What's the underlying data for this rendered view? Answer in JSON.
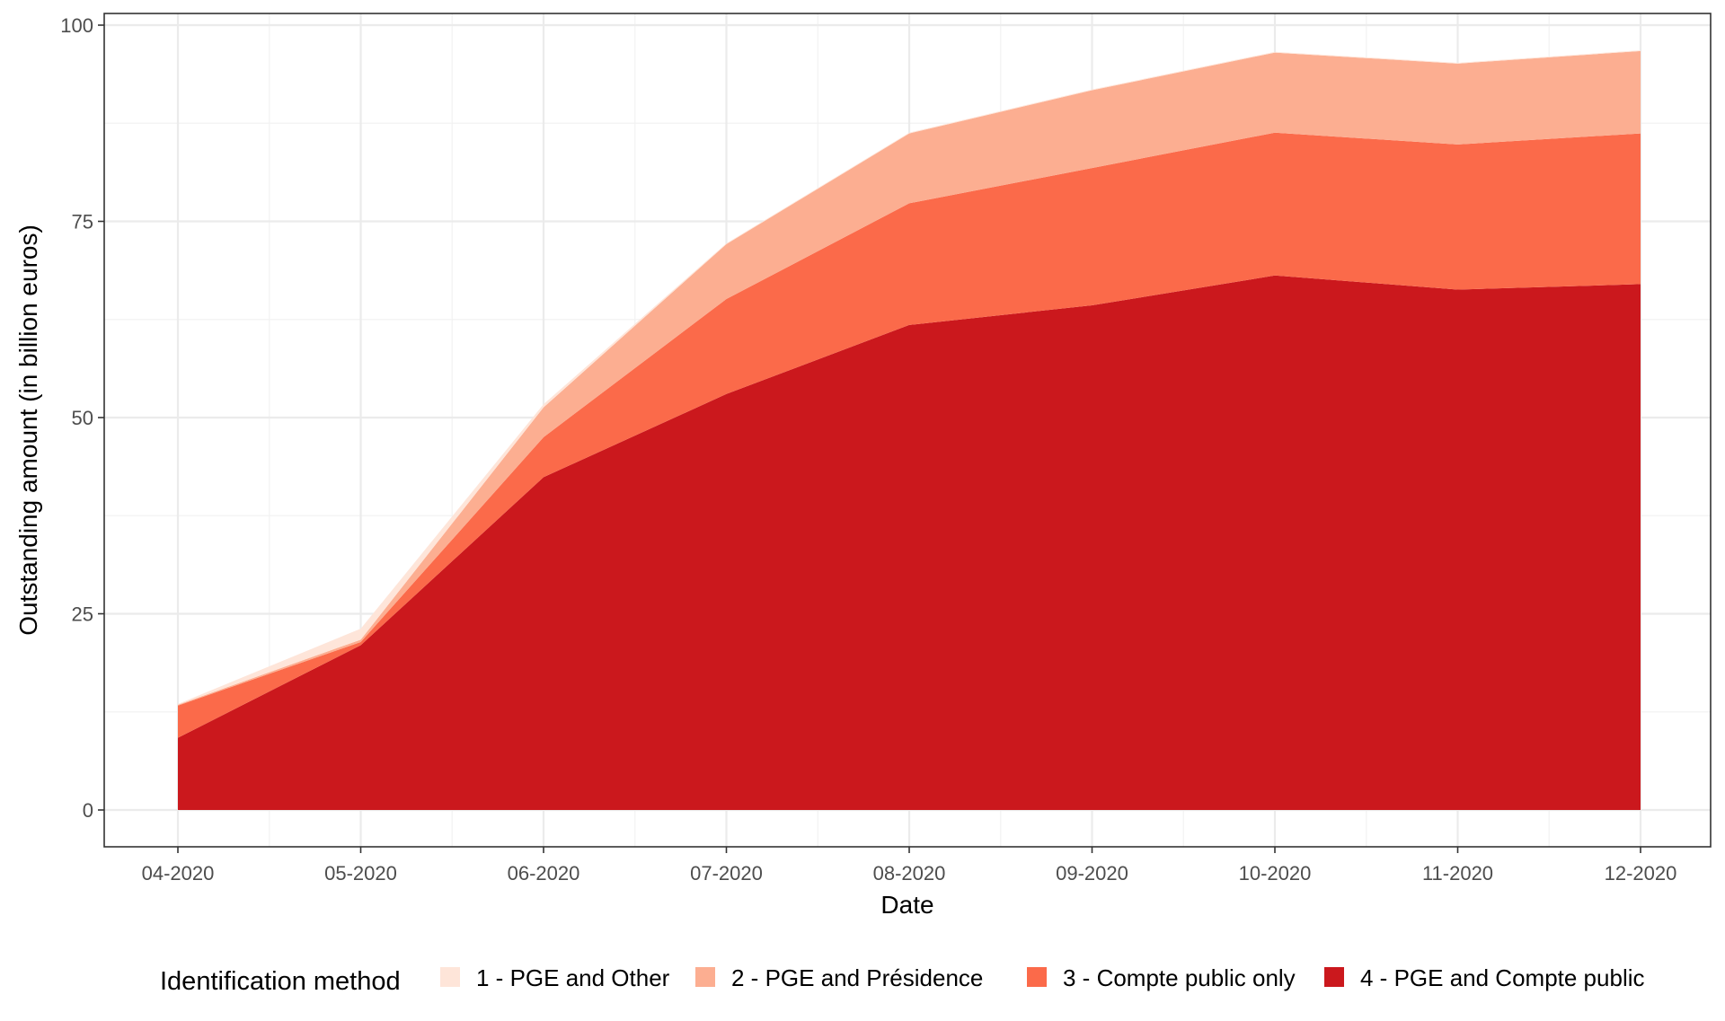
{
  "chart_data": {
    "type": "area",
    "stacked": true,
    "title": "",
    "xlabel": "Date",
    "ylabel": "Outstanding amount (in billion euros)",
    "x": [
      "04-2020",
      "05-2020",
      "06-2020",
      "07-2020",
      "08-2020",
      "09-2020",
      "10-2020",
      "11-2020",
      "12-2020"
    ],
    "ylim": [
      0,
      100
    ],
    "yticks": [
      0,
      25,
      50,
      75,
      100
    ],
    "grid": true,
    "legend": {
      "title": "Identification method",
      "position": "bottom"
    },
    "series": [
      {
        "name": "4 - PGE and Compte public",
        "color": "#cb181d",
        "values": [
          9.2,
          21.0,
          42.4,
          53.0,
          61.8,
          64.3,
          68.1,
          66.3,
          67.0
        ]
      },
      {
        "name": "3 - Compte public only",
        "color": "#fb6a4a",
        "values": [
          4.1,
          0.4,
          5.1,
          12.1,
          15.5,
          17.5,
          18.2,
          18.5,
          19.2
        ]
      },
      {
        "name": "2 - PGE and Présidence",
        "color": "#fcae91",
        "values": [
          0.1,
          0.3,
          3.8,
          7.0,
          8.9,
          9.9,
          10.2,
          10.3,
          10.5
        ]
      },
      {
        "name": "1 - PGE and Other",
        "color": "#fee5d9",
        "values": [
          0.1,
          1.4,
          0.4,
          0.1,
          0.1,
          0.1,
          0.1,
          0.1,
          0.1
        ]
      }
    ],
    "legend_order": [
      "1 - PGE and Other",
      "2 - PGE and Présidence",
      "3 - Compte public only",
      "4 - PGE and Compte public"
    ]
  }
}
